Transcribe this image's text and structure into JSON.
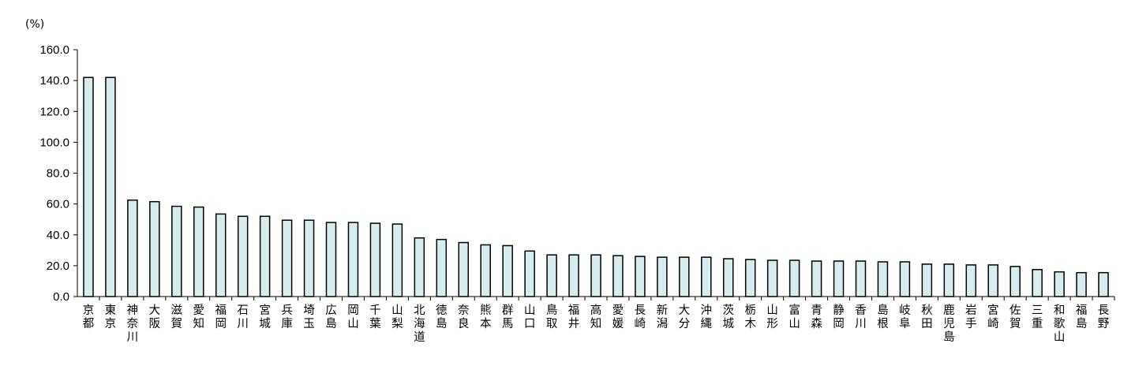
{
  "chart_data": {
    "type": "bar",
    "ylabel": "(%)",
    "ylim": [
      0,
      160
    ],
    "yticks": [
      "0.0",
      "20.0",
      "40.0",
      "60.0",
      "80.0",
      "100.0",
      "120.0",
      "140.0",
      "160.0"
    ],
    "grid": false,
    "legend": "none",
    "bar_color": "#d7ecec",
    "bar_edge_color": "#000000",
    "categories": [
      "京都",
      "東京",
      "神奈川",
      "大阪",
      "滋賀",
      "愛知",
      "福岡",
      "石川",
      "宮城",
      "兵庫",
      "埼玉",
      "広島",
      "岡山",
      "千葉",
      "山梨",
      "北海道",
      "徳島",
      "奈良",
      "熊本",
      "群馬",
      "山口",
      "鳥取",
      "福井",
      "高知",
      "愛媛",
      "長崎",
      "新潟",
      "大分",
      "沖縄",
      "茨城",
      "栃木",
      "山形",
      "富山",
      "青森",
      "静岡",
      "香川",
      "島根",
      "岐阜",
      "秋田",
      "鹿児島",
      "岩手",
      "宮崎",
      "佐賀",
      "三重",
      "和歌山",
      "福島",
      "長野"
    ],
    "values": [
      142.0,
      142.0,
      62.5,
      61.5,
      58.5,
      58.0,
      53.5,
      52.0,
      52.0,
      49.5,
      49.5,
      48.0,
      48.0,
      47.5,
      47.0,
      38.0,
      37.0,
      35.0,
      33.5,
      33.0,
      29.5,
      27.0,
      27.0,
      27.0,
      26.5,
      26.0,
      25.5,
      25.5,
      25.5,
      24.5,
      24.0,
      23.5,
      23.5,
      23.0,
      23.0,
      23.0,
      22.5,
      22.5,
      21.0,
      21.0,
      20.5,
      20.5,
      19.5,
      17.5,
      16.0,
      15.5,
      15.5
    ]
  }
}
